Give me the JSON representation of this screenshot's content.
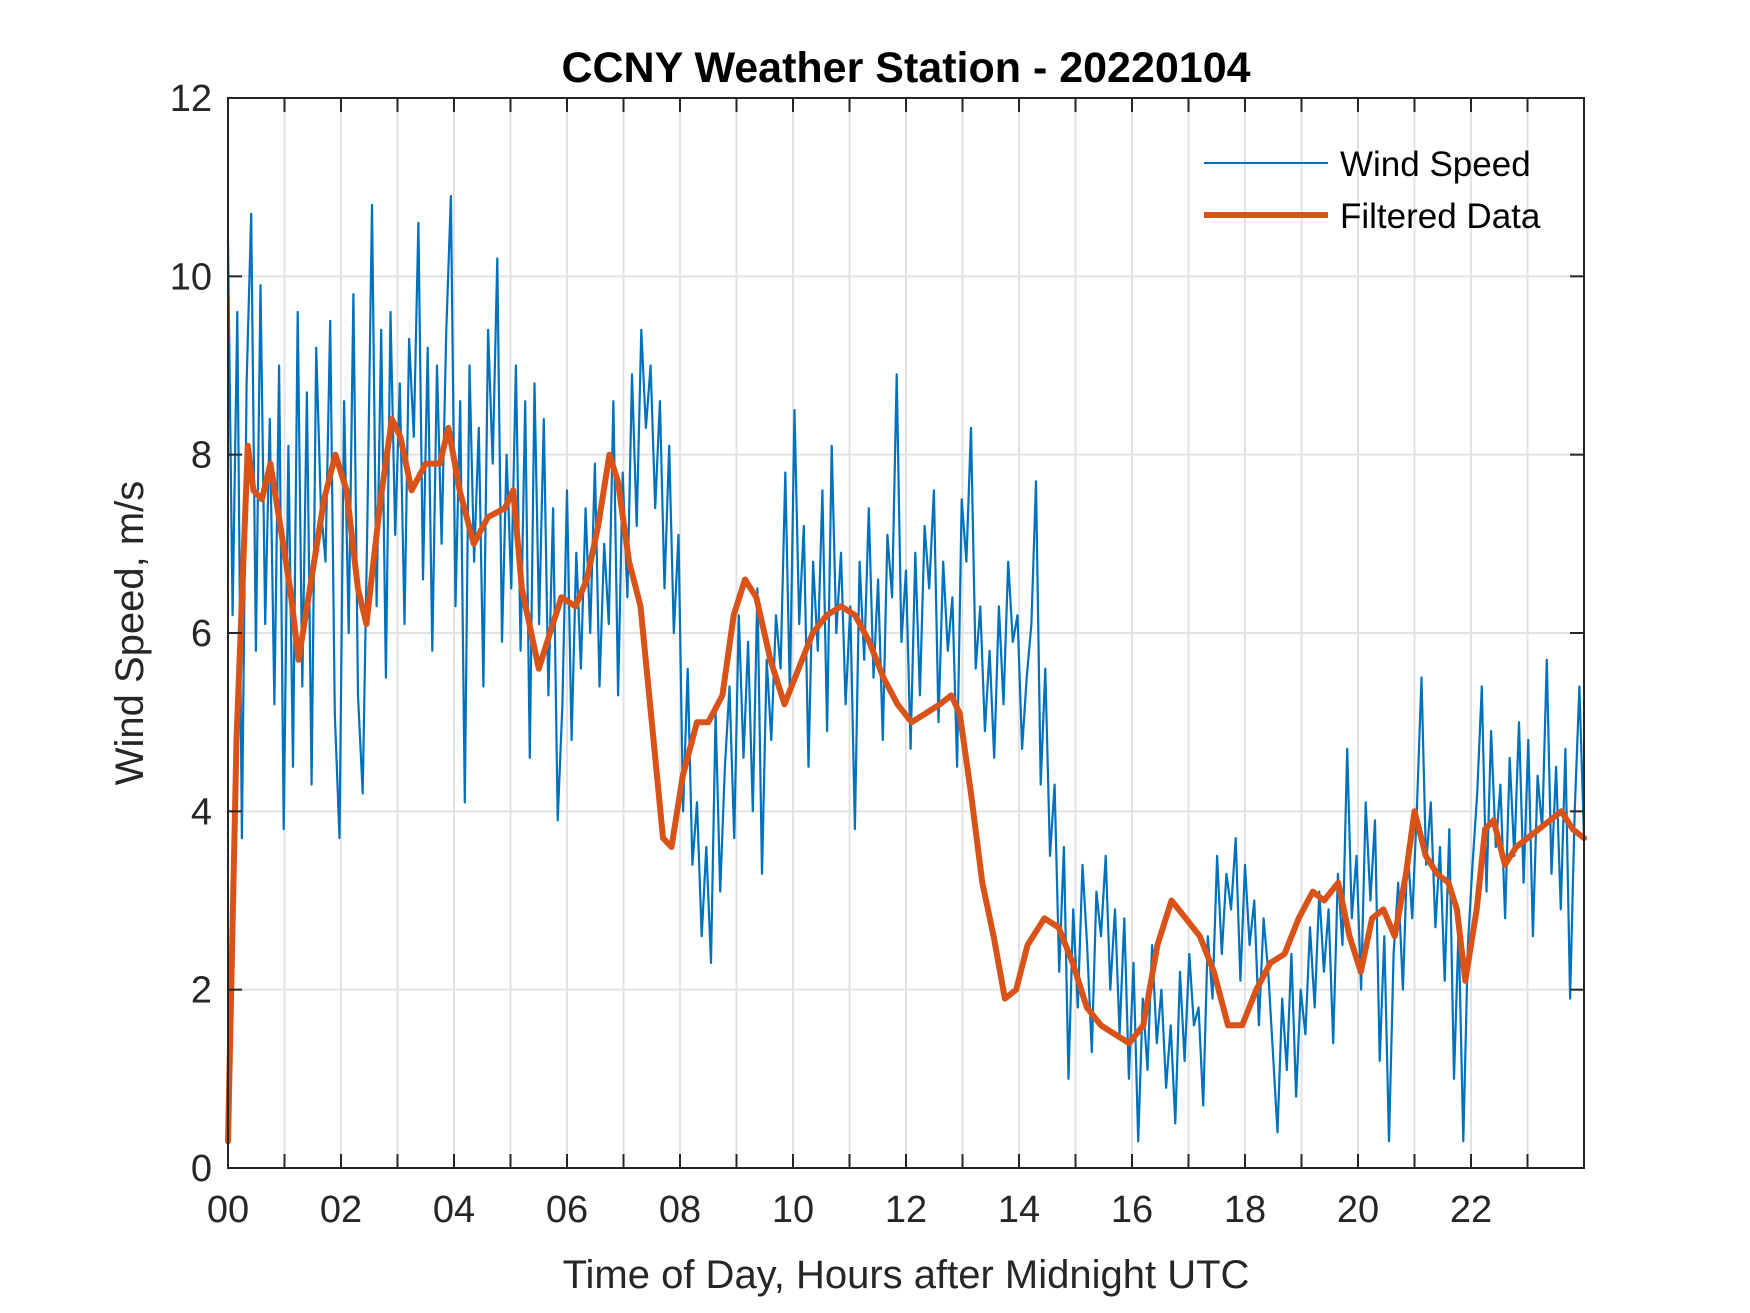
{
  "chart_data": {
    "type": "line",
    "title": "CCNY Weather Station - 20220104",
    "xlabel": "Time of Day, Hours after Midnight UTC",
    "ylabel": "Wind Speed, m/s",
    "xlim": [
      0,
      24
    ],
    "ylim": [
      0,
      12
    ],
    "xticks": [
      0,
      2,
      4,
      6,
      8,
      10,
      12,
      14,
      16,
      18,
      20,
      22
    ],
    "xtick_labels": [
      "00",
      "02",
      "04",
      "06",
      "08",
      "10",
      "12",
      "14",
      "16",
      "18",
      "20",
      "22"
    ],
    "xminor_ticks": [
      1,
      3,
      5,
      7,
      9,
      11,
      13,
      15,
      17,
      19,
      21,
      23
    ],
    "yticks": [
      0,
      2,
      4,
      6,
      8,
      10,
      12
    ],
    "ytick_labels": [
      "0",
      "2",
      "4",
      "6",
      "8",
      "10",
      "12"
    ],
    "grid": true,
    "legend_position": "top-right",
    "legend": [
      "Wind Speed",
      "Filtered Data"
    ],
    "series": [
      {
        "name": "Wind Speed",
        "color": "#0072BD",
        "sample_interval_hours": 0.0833333,
        "values": [
          10.4,
          6.2,
          9.6,
          3.7,
          8.8,
          10.7,
          5.8,
          9.9,
          6.1,
          8.4,
          5.2,
          9.0,
          3.8,
          8.1,
          4.5,
          9.6,
          5.4,
          8.7,
          4.3,
          9.2,
          7.4,
          6.8,
          9.5,
          5.1,
          3.7,
          8.6,
          6.0,
          9.8,
          5.3,
          4.2,
          7.2,
          10.8,
          6.3,
          9.4,
          5.5,
          9.6,
          7.1,
          8.8,
          6.1,
          9.3,
          8.2,
          10.6,
          6.6,
          9.2,
          5.8,
          9.0,
          7.0,
          9.4,
          10.9,
          6.3,
          8.6,
          4.1,
          9.0,
          6.8,
          8.3,
          5.4,
          9.4,
          7.9,
          10.2,
          5.9,
          8.0,
          6.5,
          9.0,
          5.8,
          8.6,
          4.6,
          8.8,
          6.1,
          8.4,
          5.3,
          7.4,
          3.9,
          5.2,
          7.6,
          4.8,
          6.9,
          5.6,
          7.4,
          6.0,
          7.9,
          5.4,
          7.0,
          6.1,
          8.6,
          5.3,
          7.8,
          6.4,
          8.9,
          7.2,
          9.4,
          8.3,
          9.0,
          7.4,
          8.6,
          6.5,
          8.1,
          6.0,
          7.1,
          4.0,
          5.6,
          3.4,
          4.1,
          2.6,
          3.6,
          2.3,
          5.1,
          3.1,
          4.5,
          5.4,
          3.7,
          6.2,
          4.6,
          5.9,
          4.0,
          6.5,
          3.3,
          5.7,
          4.8,
          6.2,
          5.6,
          7.8,
          5.3,
          8.5,
          6.1,
          7.2,
          4.5,
          6.8,
          5.8,
          7.6,
          4.9,
          8.1,
          6.0,
          6.9,
          5.2,
          6.3,
          3.8,
          6.8,
          5.7,
          7.4,
          5.5,
          6.6,
          4.8,
          7.1,
          6.4,
          8.9,
          5.9,
          6.7,
          4.7,
          6.9,
          5.3,
          7.2,
          6.5,
          7.6,
          5.0,
          6.8,
          5.8,
          6.4,
          4.5,
          7.5,
          6.8,
          8.3,
          5.6,
          6.3,
          4.9,
          5.8,
          4.6,
          6.3,
          5.2,
          6.8,
          5.9,
          6.2,
          4.7,
          5.5,
          6.1,
          7.7,
          4.3,
          5.6,
          3.5,
          4.3,
          2.2,
          3.6,
          1.0,
          2.9,
          1.8,
          3.4,
          2.5,
          1.3,
          3.1,
          2.6,
          3.5,
          2.0,
          2.9,
          1.5,
          2.8,
          1.0,
          2.3,
          0.3,
          1.9,
          1.1,
          2.5,
          1.4,
          2.0,
          0.9,
          1.6,
          0.5,
          2.2,
          1.2,
          2.4,
          1.6,
          1.8,
          0.7,
          2.6,
          1.9,
          3.5,
          2.4,
          3.3,
          2.9,
          3.7,
          2.1,
          3.4,
          2.5,
          3.0,
          1.6,
          2.8,
          2.2,
          1.3,
          0.4,
          1.9,
          1.1,
          2.4,
          0.8,
          2.0,
          1.5,
          2.7,
          1.8,
          3.1,
          2.2,
          2.9,
          1.4,
          3.3,
          2.5,
          4.7,
          2.8,
          3.5,
          2.0,
          4.1,
          3.0,
          3.9,
          1.2,
          2.6,
          0.3,
          2.4,
          3.2,
          2.0,
          3.6,
          2.8,
          4.0,
          5.5,
          3.4,
          4.1,
          2.7,
          3.6,
          2.1,
          3.8,
          1.0,
          2.7,
          0.3,
          2.5,
          3.4,
          4.2,
          5.4,
          3.1,
          4.9,
          3.6,
          4.3,
          2.8,
          4.6,
          3.5,
          5.0,
          3.2,
          4.8,
          2.6,
          4.4,
          3.8,
          5.7,
          3.3,
          4.5,
          2.9,
          4.7,
          1.9,
          4.0,
          5.4,
          3.7
        ]
      },
      {
        "name": "Filtered Data",
        "color": "#D95319",
        "points": [
          [
            0,
            0.3
          ],
          [
            0.15,
            4.8
          ],
          [
            0.35,
            8.1
          ],
          [
            0.45,
            7.6
          ],
          [
            0.6,
            7.5
          ],
          [
            0.75,
            7.9
          ],
          [
            0.9,
            7.3
          ],
          [
            1.1,
            6.5
          ],
          [
            1.25,
            5.7
          ],
          [
            1.45,
            6.5
          ],
          [
            1.7,
            7.5
          ],
          [
            1.9,
            8.0
          ],
          [
            2.1,
            7.6
          ],
          [
            2.3,
            6.5
          ],
          [
            2.45,
            6.1
          ],
          [
            2.7,
            7.5
          ],
          [
            2.9,
            8.4
          ],
          [
            3.05,
            8.2
          ],
          [
            3.25,
            7.6
          ],
          [
            3.5,
            7.9
          ],
          [
            3.75,
            7.9
          ],
          [
            3.9,
            8.3
          ],
          [
            4.1,
            7.6
          ],
          [
            4.35,
            7.0
          ],
          [
            4.6,
            7.3
          ],
          [
            4.9,
            7.4
          ],
          [
            5.05,
            7.6
          ],
          [
            5.2,
            6.5
          ],
          [
            5.5,
            5.6
          ],
          [
            5.7,
            6.0
          ],
          [
            5.9,
            6.4
          ],
          [
            6.15,
            6.3
          ],
          [
            6.35,
            6.6
          ],
          [
            6.55,
            7.2
          ],
          [
            6.75,
            8.0
          ],
          [
            6.9,
            7.7
          ],
          [
            7.1,
            6.8
          ],
          [
            7.3,
            6.3
          ],
          [
            7.5,
            5.0
          ],
          [
            7.7,
            3.7
          ],
          [
            7.85,
            3.6
          ],
          [
            8.05,
            4.4
          ],
          [
            8.3,
            5.0
          ],
          [
            8.5,
            5.0
          ],
          [
            8.75,
            5.3
          ],
          [
            8.95,
            6.2
          ],
          [
            9.15,
            6.6
          ],
          [
            9.35,
            6.4
          ],
          [
            9.6,
            5.7
          ],
          [
            9.85,
            5.2
          ],
          [
            10.1,
            5.6
          ],
          [
            10.35,
            6.0
          ],
          [
            10.6,
            6.2
          ],
          [
            10.85,
            6.3
          ],
          [
            11.1,
            6.2
          ],
          [
            11.35,
            5.9
          ],
          [
            11.6,
            5.5
          ],
          [
            11.85,
            5.2
          ],
          [
            12.1,
            5.0
          ],
          [
            12.35,
            5.1
          ],
          [
            12.6,
            5.2
          ],
          [
            12.8,
            5.3
          ],
          [
            12.95,
            5.1
          ],
          [
            13.15,
            4.2
          ],
          [
            13.35,
            3.2
          ],
          [
            13.55,
            2.6
          ],
          [
            13.75,
            1.9
          ],
          [
            13.95,
            2.0
          ],
          [
            14.15,
            2.5
          ],
          [
            14.45,
            2.8
          ],
          [
            14.7,
            2.7
          ],
          [
            14.95,
            2.3
          ],
          [
            15.2,
            1.8
          ],
          [
            15.45,
            1.6
          ],
          [
            15.7,
            1.5
          ],
          [
            15.95,
            1.4
          ],
          [
            16.2,
            1.6
          ],
          [
            16.45,
            2.5
          ],
          [
            16.7,
            3.0
          ],
          [
            16.95,
            2.8
          ],
          [
            17.2,
            2.6
          ],
          [
            17.45,
            2.2
          ],
          [
            17.7,
            1.6
          ],
          [
            17.95,
            1.6
          ],
          [
            18.2,
            2.0
          ],
          [
            18.45,
            2.3
          ],
          [
            18.7,
            2.4
          ],
          [
            18.95,
            2.8
          ],
          [
            19.2,
            3.1
          ],
          [
            19.4,
            3.0
          ],
          [
            19.65,
            3.2
          ],
          [
            19.85,
            2.6
          ],
          [
            20.05,
            2.2
          ],
          [
            20.25,
            2.8
          ],
          [
            20.45,
            2.9
          ],
          [
            20.65,
            2.6
          ],
          [
            20.85,
            3.3
          ],
          [
            21.0,
            4.0
          ],
          [
            21.2,
            3.5
          ],
          [
            21.4,
            3.3
          ],
          [
            21.6,
            3.2
          ],
          [
            21.75,
            2.9
          ],
          [
            21.9,
            2.1
          ],
          [
            22.1,
            2.9
          ],
          [
            22.25,
            3.8
          ],
          [
            22.4,
            3.9
          ],
          [
            22.6,
            3.4
          ],
          [
            22.8,
            3.6
          ],
          [
            23.0,
            3.7
          ],
          [
            23.2,
            3.8
          ],
          [
            23.4,
            3.9
          ],
          [
            23.6,
            4.0
          ],
          [
            23.8,
            3.8
          ],
          [
            24.0,
            3.7
          ]
        ]
      }
    ]
  }
}
